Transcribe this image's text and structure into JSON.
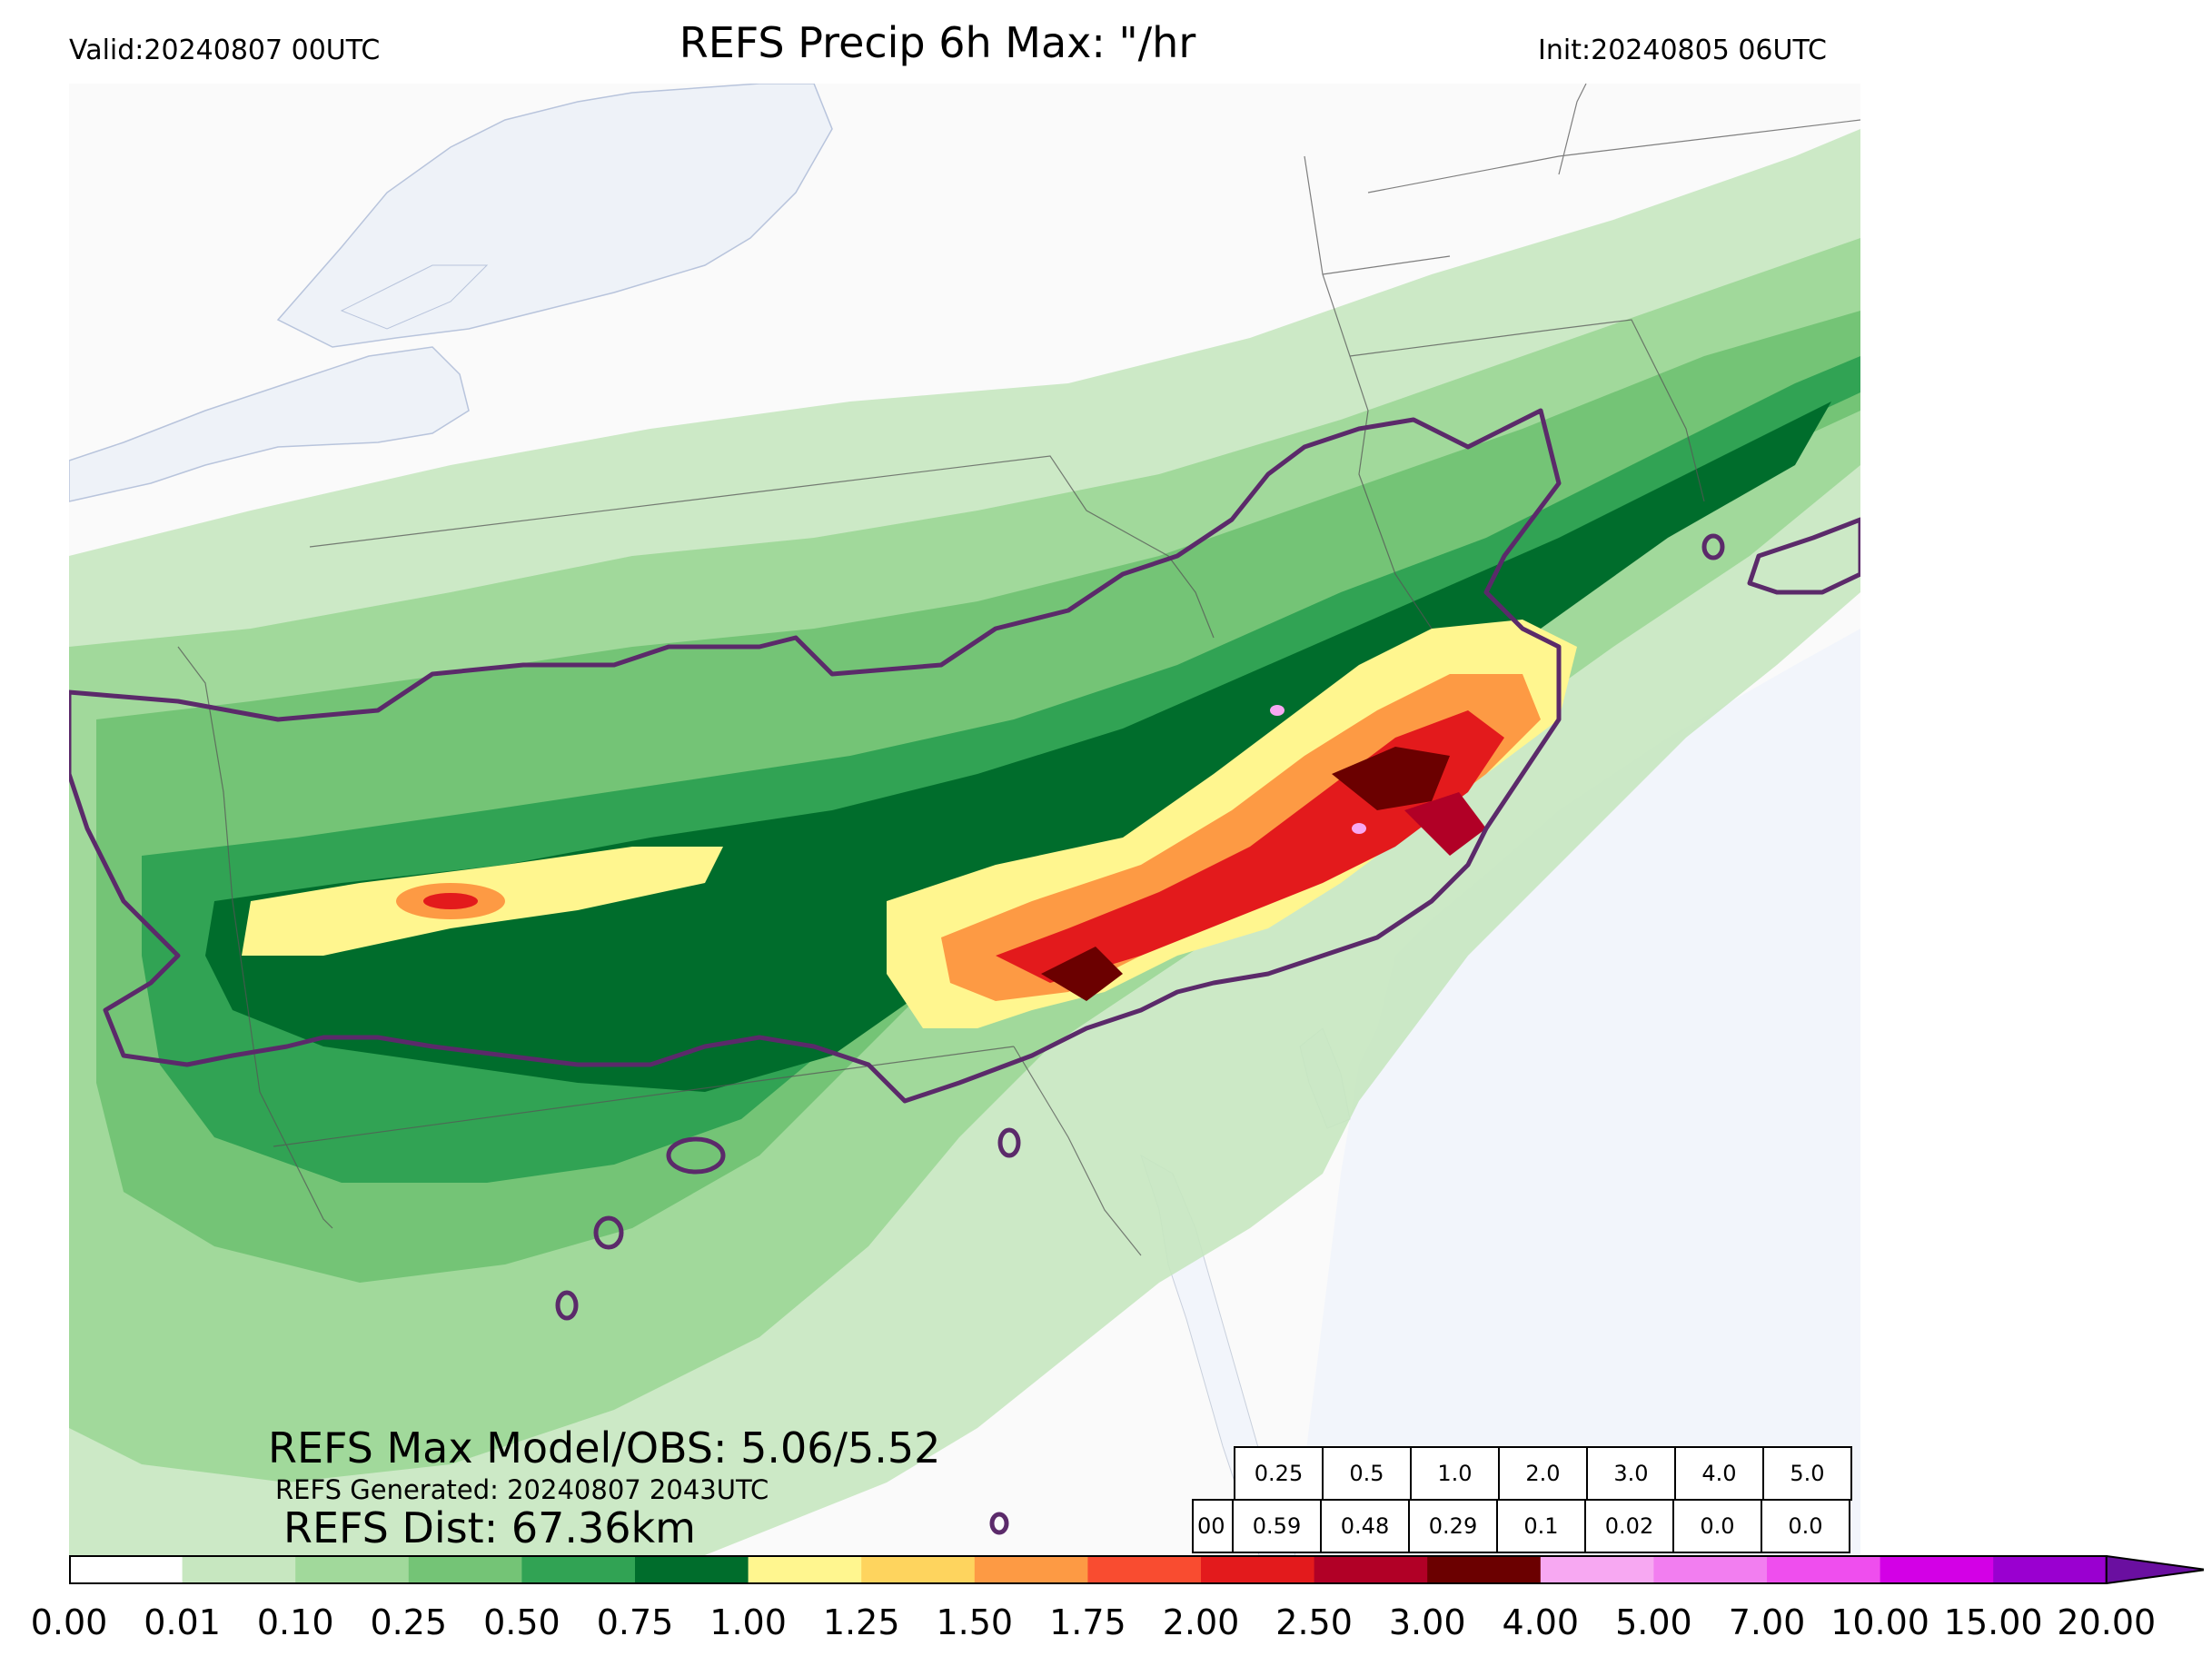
{
  "header": {
    "title": "REFS Precip 6h Max: \"/hr",
    "valid": "Valid:20240807 00UTC",
    "init": "Init:20240805 06UTC"
  },
  "annotations": {
    "max_model_obs": "REFS Max Model/OBS: 5.06/5.52",
    "generated": "REFS Generated: 20240807 2043UTC",
    "dist": "REFS Dist: 67.36km"
  },
  "stats_table": {
    "thresholds": [
      "0.25",
      "0.5",
      "1.0",
      "2.0",
      "3.0",
      "4.0",
      "5.0"
    ],
    "row_label": "00",
    "values": [
      "0.59",
      "0.48",
      "0.29",
      "0.1",
      "0.02",
      "0.0",
      "0.0"
    ]
  },
  "colorbar": {
    "ticks": [
      "0.00",
      "0.01",
      "0.10",
      "0.25",
      "0.50",
      "0.75",
      "1.00",
      "1.25",
      "1.50",
      "1.75",
      "2.00",
      "2.50",
      "3.00",
      "4.00",
      "5.00",
      "7.00",
      "10.00",
      "15.00",
      "20.00"
    ],
    "colors": [
      "#ffffff",
      "#c7e7c0",
      "#a1d99b",
      "#74c476",
      "#31a354",
      "#006d2c",
      "#fff68f",
      "#fed45e",
      "#fd9a44",
      "#f94c30",
      "#e31a1c",
      "#b10026",
      "#6b0000",
      "#f7a8f2",
      "#f27ef0",
      "#ef4eee",
      "#d300e6",
      "#9a00d0"
    ],
    "extend_color": "#6a0fa0"
  },
  "map": {
    "land_color": "#fafafa",
    "water_color": "#f2f5fb",
    "obs_contour_color": "#5b2a6a"
  }
}
